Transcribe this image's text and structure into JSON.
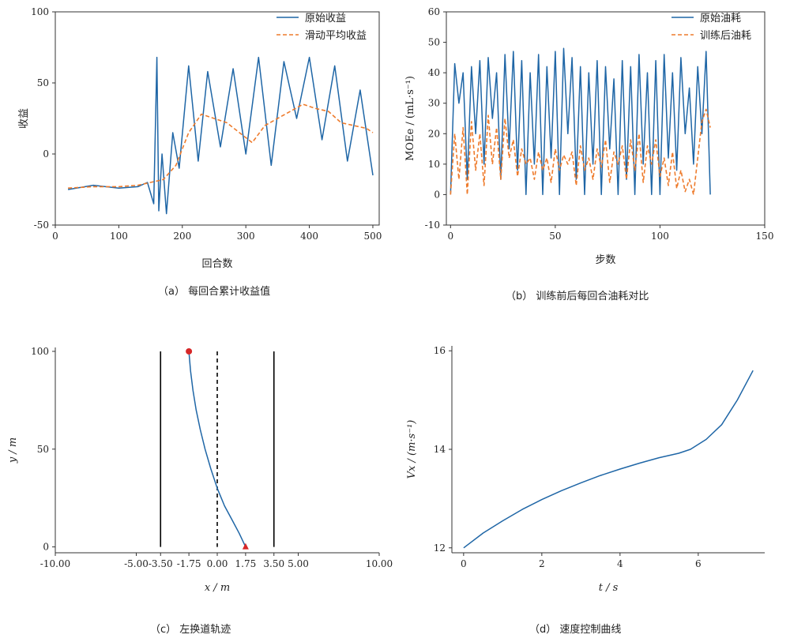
{
  "captions": {
    "a": "（a） 每回合累计收益值",
    "b": "（b） 训练前后每回合油耗对比",
    "c": "（c） 左换道轨迹",
    "d": "（d） 速度控制曲线"
  },
  "colors": {
    "blue": "#1f66a6",
    "orange": "#ee7b2c",
    "marker": "#d62728"
  },
  "chart_data": [
    {
      "id": "a",
      "type": "line",
      "xlabel": "回合数",
      "ylabel": "收益",
      "xlim": [
        0,
        510
      ],
      "ylim": [
        -50,
        100
      ],
      "xticks": [
        0,
        100,
        200,
        300,
        400,
        500
      ],
      "yticks": [
        -50,
        0,
        50,
        100
      ],
      "legend": "top-right",
      "series": [
        {
          "name": "原始收益",
          "style": "solid",
          "color": "#1f66a6",
          "x": [
            20,
            60,
            100,
            130,
            145,
            155,
            160,
            163,
            168,
            175,
            185,
            195,
            210,
            225,
            240,
            260,
            280,
            300,
            320,
            340,
            360,
            380,
            400,
            420,
            440,
            460,
            480,
            500
          ],
          "y": [
            -25,
            -22,
            -24,
            -23,
            -20,
            -35,
            68,
            -40,
            0,
            -42,
            15,
            -10,
            62,
            -5,
            58,
            5,
            60,
            0,
            68,
            -8,
            65,
            25,
            68,
            10,
            62,
            -5,
            45,
            -15
          ]
        },
        {
          "name": "滑动平均收益",
          "style": "dashed",
          "color": "#ee7b2c",
          "x": [
            20,
            60,
            100,
            130,
            150,
            170,
            190,
            210,
            230,
            250,
            270,
            290,
            310,
            330,
            350,
            370,
            390,
            410,
            430,
            450,
            470,
            490,
            500
          ],
          "y": [
            -24,
            -23,
            -23,
            -22,
            -20,
            -18,
            -8,
            15,
            28,
            25,
            22,
            15,
            8,
            20,
            25,
            30,
            35,
            32,
            30,
            22,
            20,
            18,
            15
          ]
        }
      ]
    },
    {
      "id": "b",
      "type": "line",
      "xlabel": "步数",
      "ylabel": "MOEe / (mL·s⁻¹)",
      "xlim": [
        -2,
        150
      ],
      "ylim": [
        -10,
        60
      ],
      "xticks": [
        0,
        50,
        100,
        150
      ],
      "yticks": [
        -10,
        0,
        10,
        20,
        30,
        40,
        50,
        60
      ],
      "legend": "top-right",
      "series": [
        {
          "name": "原始油耗",
          "style": "solid",
          "color": "#1f66a6",
          "x": [
            0,
            2,
            4,
            6,
            8,
            10,
            12,
            14,
            16,
            18,
            20,
            22,
            24,
            26,
            28,
            30,
            32,
            34,
            36,
            38,
            40,
            42,
            44,
            46,
            48,
            50,
            52,
            54,
            56,
            58,
            60,
            62,
            64,
            66,
            68,
            70,
            72,
            74,
            76,
            78,
            80,
            82,
            84,
            86,
            88,
            90,
            92,
            94,
            96,
            98,
            100,
            102,
            104,
            106,
            108,
            110,
            112,
            114,
            116,
            118,
            120,
            122,
            124
          ],
          "y": [
            0,
            43,
            30,
            40,
            5,
            42,
            20,
            44,
            10,
            45,
            25,
            40,
            5,
            46,
            15,
            47,
            8,
            44,
            0,
            40,
            10,
            46,
            0,
            42,
            12,
            47,
            0,
            48,
            20,
            45,
            5,
            42,
            0,
            40,
            10,
            44,
            0,
            42,
            15,
            38,
            0,
            44,
            5,
            42,
            0,
            46,
            10,
            40,
            0,
            44,
            0,
            46,
            12,
            40,
            8,
            45,
            20,
            35,
            10,
            42,
            20,
            47,
            0
          ]
        },
        {
          "name": "训练后油耗",
          "style": "dashed",
          "color": "#ee7b2c",
          "x": [
            0,
            2,
            4,
            6,
            8,
            10,
            12,
            14,
            16,
            18,
            20,
            22,
            24,
            26,
            28,
            30,
            32,
            34,
            36,
            38,
            40,
            42,
            44,
            46,
            48,
            50,
            52,
            54,
            56,
            58,
            60,
            62,
            64,
            66,
            68,
            70,
            72,
            74,
            76,
            78,
            80,
            82,
            84,
            86,
            88,
            90,
            92,
            94,
            96,
            98,
            100,
            102,
            104,
            106,
            108,
            110,
            112,
            114,
            116,
            118,
            120,
            122,
            124
          ],
          "y": [
            0,
            20,
            5,
            22,
            0,
            24,
            8,
            20,
            3,
            26,
            10,
            22,
            5,
            25,
            12,
            18,
            6,
            15,
            10,
            12,
            5,
            14,
            8,
            12,
            4,
            15,
            8,
            13,
            10,
            14,
            3,
            16,
            8,
            12,
            5,
            15,
            9,
            18,
            4,
            14,
            10,
            16,
            5,
            18,
            8,
            20,
            4,
            16,
            10,
            18,
            6,
            12,
            3,
            14,
            2,
            8,
            1,
            5,
            0,
            12,
            24,
            28,
            22
          ]
        }
      ]
    },
    {
      "id": "c",
      "type": "line",
      "xlabel": "x / m",
      "ylabel": "y / m",
      "xlim": [
        -10,
        10
      ],
      "ylim": [
        -3,
        102
      ],
      "xticks": [
        "-10.00",
        "-5.00",
        "-3.50",
        "-1.75",
        "0.00",
        "1.75",
        "3.50",
        "5.00",
        "10.00"
      ],
      "yticks": [
        0,
        50,
        100
      ],
      "lane_lines": [
        {
          "x": -3.5,
          "style": "solid"
        },
        {
          "x": 0.0,
          "style": "dashed"
        },
        {
          "x": 3.5,
          "style": "solid"
        }
      ],
      "start_marker": {
        "x": 1.75,
        "y": 0,
        "shape": "triangle"
      },
      "end_marker": {
        "x": -1.75,
        "y": 100,
        "shape": "circle"
      },
      "series": [
        {
          "style": "solid",
          "color": "#1f66a6",
          "x": [
            1.75,
            1.35,
            0.9,
            0.45,
            0.0,
            -0.4,
            -0.75,
            -1.05,
            -1.3,
            -1.5,
            -1.65,
            -1.75
          ],
          "y": [
            0,
            7,
            14,
            21,
            30,
            40,
            50,
            60,
            70,
            80,
            90,
            100
          ]
        }
      ]
    },
    {
      "id": "d",
      "type": "line",
      "xlabel": "t / s",
      "ylabel": "Vx / (m·s⁻¹)",
      "xlim": [
        -0.3,
        7.7
      ],
      "ylim": [
        11.9,
        16.1
      ],
      "xticks": [
        0,
        2,
        4,
        6
      ],
      "yticks": [
        12,
        14,
        16
      ],
      "series": [
        {
          "style": "solid",
          "color": "#1f66a6",
          "x": [
            0,
            0.5,
            1,
            1.5,
            2,
            2.5,
            3,
            3.5,
            4,
            4.5,
            5,
            5.5,
            5.8,
            6.2,
            6.6,
            7,
            7.4
          ],
          "y": [
            12.0,
            12.3,
            12.55,
            12.78,
            12.98,
            13.16,
            13.32,
            13.47,
            13.6,
            13.72,
            13.83,
            13.92,
            14.0,
            14.2,
            14.5,
            15.0,
            15.6
          ]
        }
      ]
    }
  ]
}
